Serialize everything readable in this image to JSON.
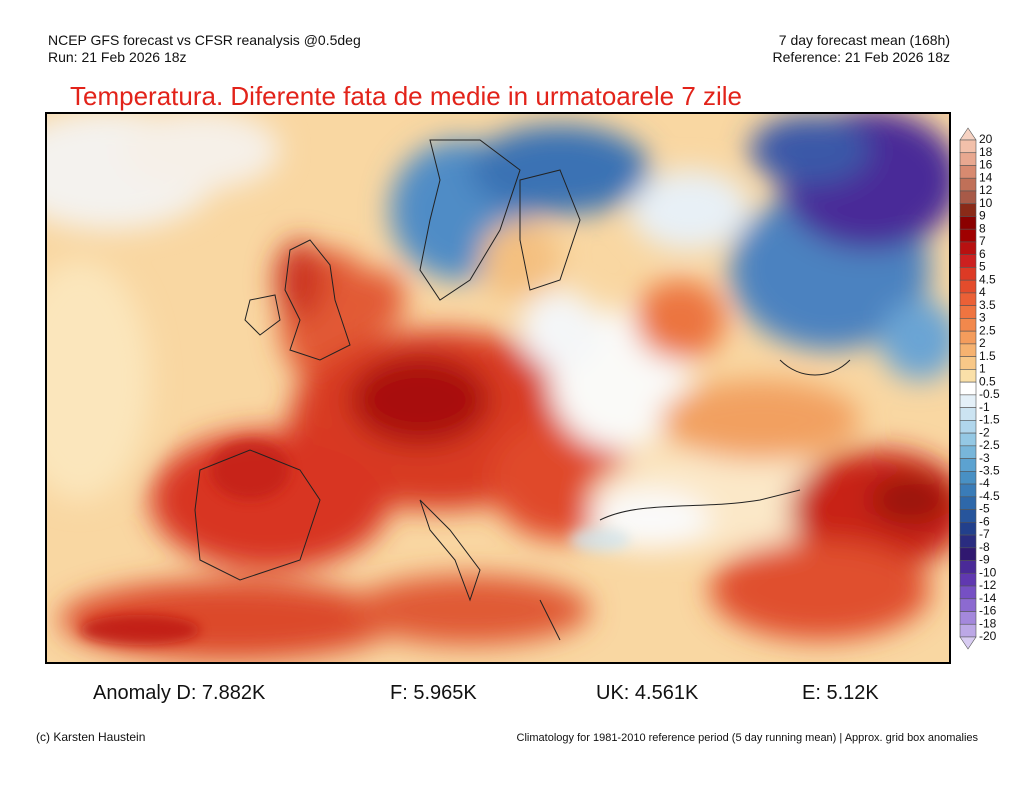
{
  "header": {
    "left": [
      "NCEP GFS forecast vs CFSR reanalysis @0.5deg",
      "Run: 21 Feb 2026 18z"
    ],
    "right": [
      "7 day forecast mean (168h)",
      "Reference: 21 Feb 2026 18z"
    ]
  },
  "title": "Temperatura. Diferente fata de medie in urmatoarele 7 zile",
  "colorbar": {
    "labels": [
      20,
      18,
      16,
      14,
      12,
      10,
      9,
      8,
      7,
      6,
      5,
      4.5,
      4,
      3.5,
      3,
      2.5,
      2,
      1.5,
      1,
      0.5,
      -0.5,
      -1,
      -1.5,
      -2,
      -2.5,
      -3,
      -3.5,
      -4,
      -4.5,
      -5,
      -6,
      -7,
      -8,
      -9,
      -10,
      -12,
      -14,
      -16,
      -18,
      -20
    ],
    "colors": [
      "#f6d2c2",
      "#f2c0aa",
      "#e8a890",
      "#d88a70",
      "#c07058",
      "#a85a48",
      "#8a2a18",
      "#8b0000",
      "#a00000",
      "#b81010",
      "#cc2020",
      "#dd3a25",
      "#e44c2c",
      "#eb6036",
      "#ef7440",
      "#f2884c",
      "#f49c5c",
      "#f6b270",
      "#f8c888",
      "#fae0a8",
      "#ffffff",
      "#e4f0f8",
      "#cce4f2",
      "#b0d6ec",
      "#94c8e4",
      "#78b6da",
      "#5ca2d0",
      "#4890c4",
      "#3a7cb8",
      "#2e68aa",
      "#27559c",
      "#22408c",
      "#2a2c80",
      "#301870",
      "#4a2a98",
      "#6038b0",
      "#7650c4",
      "#8c6ad0",
      "#a488dc",
      "#bca8e6",
      "#d8ccf2"
    ]
  },
  "anomalies": [
    "Anomaly D: 7.882K",
    "F: 5.965K",
    "UK: 4.561K",
    "E: 5.12K"
  ],
  "footer": {
    "left": "(c) Karsten Haustein",
    "right": "Climatology for 1981-2010 reference period (5 day running mean) | Approx. grid box anomalies"
  }
}
